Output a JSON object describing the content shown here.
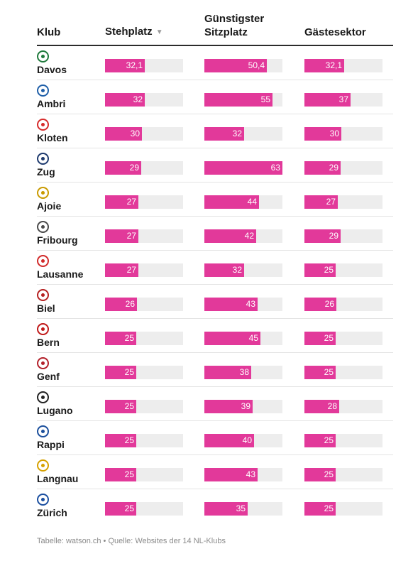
{
  "chart_data": {
    "type": "table",
    "columns": [
      "Klub",
      "Stehplatz",
      "Günstigster Sitzplatz",
      "Gästesektor"
    ],
    "sort_indicator": "▼",
    "bar_max": 63,
    "colors": {
      "bar": "#e2399a",
      "track": "#ededed"
    },
    "rows": [
      {
        "club": "Davos",
        "logo_color": "#1f7a3c",
        "stehplatz": "32,1",
        "sitzplatz": "50,4",
        "gaestesektor": "32,1"
      },
      {
        "club": "Ambri",
        "logo_color": "#1f5fa8",
        "stehplatz": "32",
        "sitzplatz": "55",
        "gaestesektor": "37"
      },
      {
        "club": "Kloten",
        "logo_color": "#d62b2b",
        "stehplatz": "30",
        "sitzplatz": "32",
        "gaestesektor": "30"
      },
      {
        "club": "Zug",
        "logo_color": "#1e3a6e",
        "stehplatz": "29",
        "sitzplatz": "63",
        "gaestesektor": "29"
      },
      {
        "club": "Ajoie",
        "logo_color": "#c99a00",
        "stehplatz": "27",
        "sitzplatz": "44",
        "gaestesektor": "27"
      },
      {
        "club": "Fribourg",
        "logo_color": "#4a4a4a",
        "stehplatz": "27",
        "sitzplatz": "42",
        "gaestesektor": "29"
      },
      {
        "club": "Lausanne",
        "logo_color": "#d12a2a",
        "stehplatz": "27",
        "sitzplatz": "32",
        "gaestesektor": "25"
      },
      {
        "club": "Biel",
        "logo_color": "#b52020",
        "stehplatz": "26",
        "sitzplatz": "43",
        "gaestesektor": "26"
      },
      {
        "club": "Bern",
        "logo_color": "#c01818",
        "stehplatz": "25",
        "sitzplatz": "45",
        "gaestesektor": "25"
      },
      {
        "club": "Genf",
        "logo_color": "#b3202a",
        "stehplatz": "25",
        "sitzplatz": "38",
        "gaestesektor": "25"
      },
      {
        "club": "Lugano",
        "logo_color": "#222222",
        "stehplatz": "25",
        "sitzplatz": "39",
        "gaestesektor": "28"
      },
      {
        "club": "Rappi",
        "logo_color": "#1b4f9c",
        "stehplatz": "25",
        "sitzplatz": "40",
        "gaestesektor": "25"
      },
      {
        "club": "Langnau",
        "logo_color": "#d6a100",
        "stehplatz": "25",
        "sitzplatz": "43",
        "gaestesektor": "25"
      },
      {
        "club": "Zürich",
        "logo_color": "#1b4fa0",
        "stehplatz": "25",
        "sitzplatz": "35",
        "gaestesektor": "25"
      }
    ]
  },
  "footer": {
    "source": "Tabelle: watson.ch • Quelle: Websites der 14 NL-Klubs"
  }
}
